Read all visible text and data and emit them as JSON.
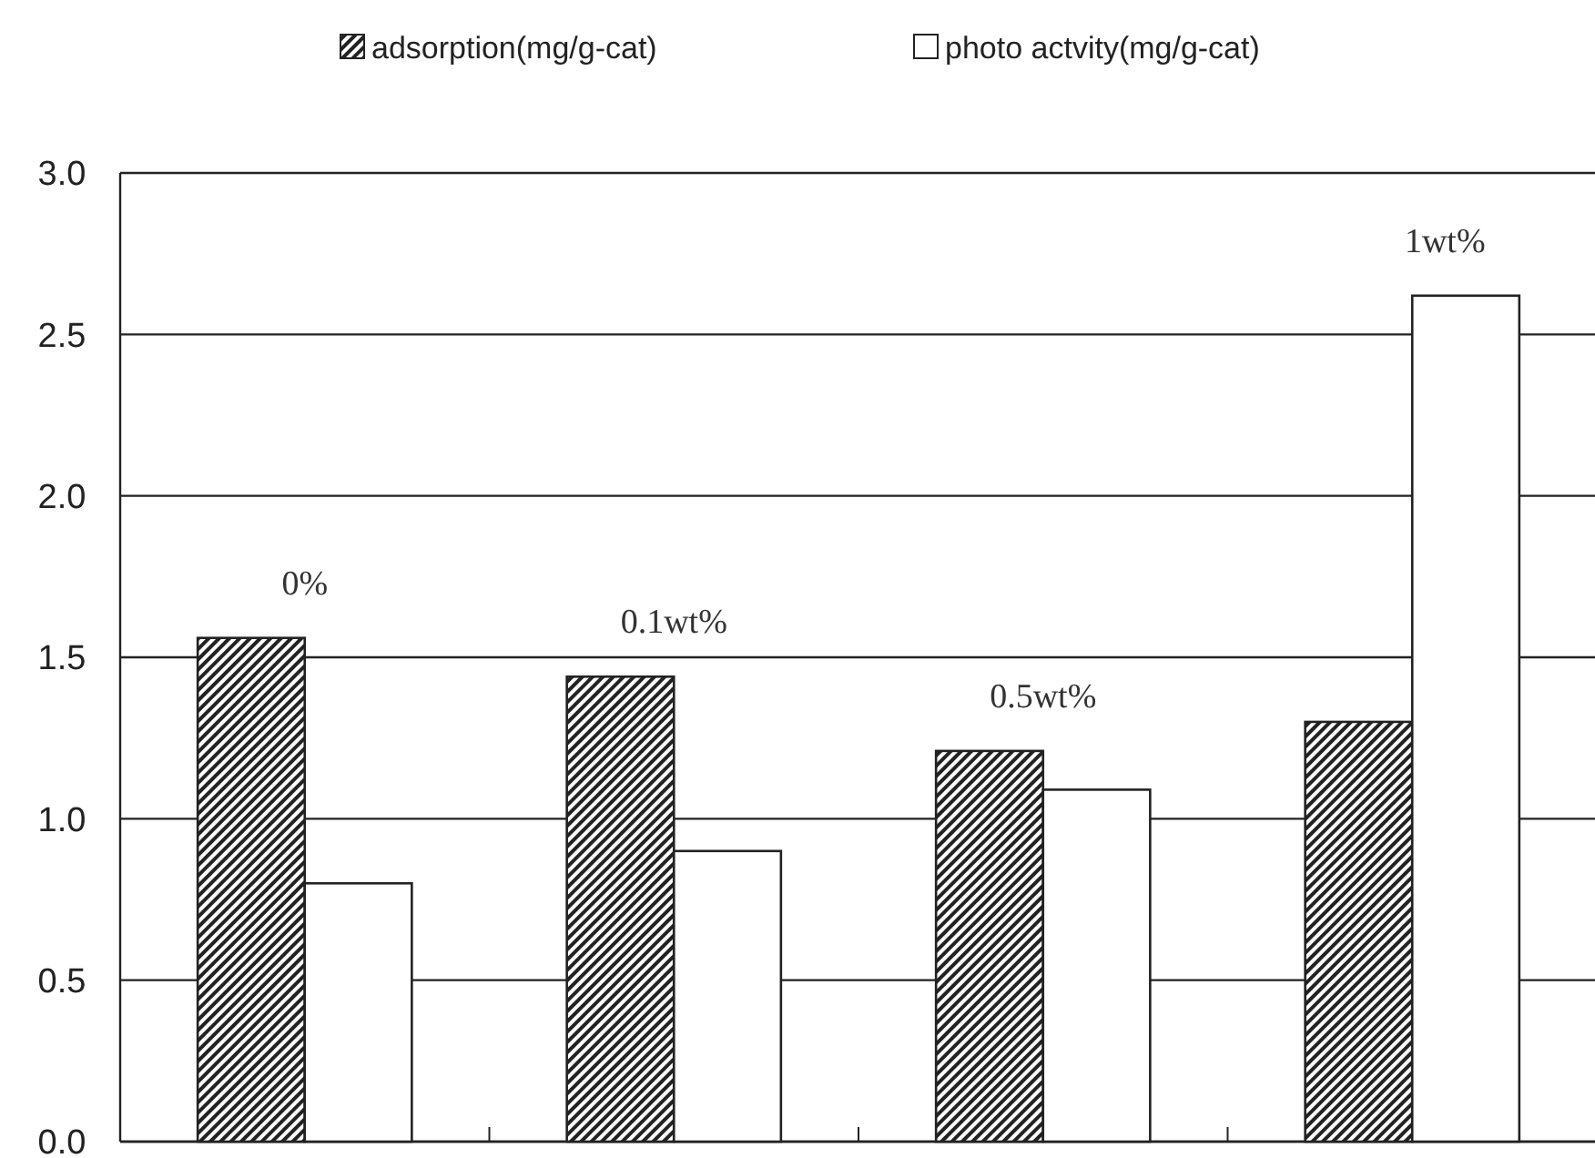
{
  "chart_data": {
    "type": "bar",
    "categories": [
      "0%",
      "0.1wt%",
      "0.5wt%",
      "1wt%"
    ],
    "series": [
      {
        "name": "adsorption(mg/g-cat)",
        "color": "#222222",
        "values": [
          1.56,
          1.44,
          1.21,
          1.3
        ]
      },
      {
        "name": "photo actvity(mg/g-cat)",
        "color": "#ffffff",
        "values": [
          0.8,
          0.9,
          1.09,
          2.62
        ]
      }
    ],
    "ylim": [
      0,
      3
    ],
    "yticks": [
      {
        "value": 0,
        "label": "0.0"
      },
      {
        "value": 0.5,
        "label": "0.5"
      },
      {
        "value": 1,
        "label": "1.0"
      },
      {
        "value": 1.5,
        "label": "1.5"
      },
      {
        "value": 2,
        "label": "2.0"
      },
      {
        "value": 2.5,
        "label": "2.5"
      },
      {
        "value": 3,
        "label": "3.0"
      }
    ],
    "grid": "y",
    "legend": "top"
  }
}
